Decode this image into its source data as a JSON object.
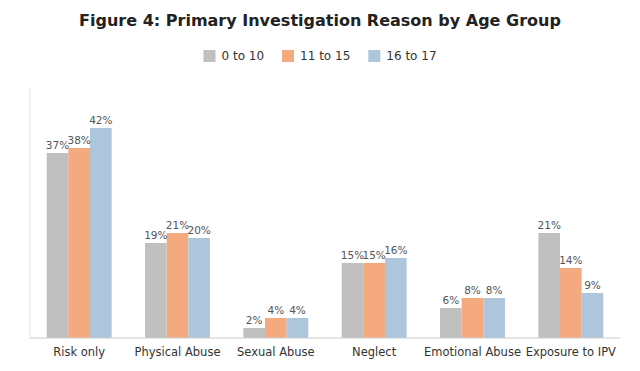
{
  "chart_data": {
    "type": "bar",
    "title": "Figure 4: Primary Investigation Reason by Age Group",
    "categories": [
      "Risk only",
      "Physical Abuse",
      "Sexual Abuse",
      "Neglect",
      "Emotional Abuse",
      "Exposure to IPV"
    ],
    "series": [
      {
        "name": "0 to 10",
        "color": "#c0c0c0",
        "values": [
          37,
          19,
          2,
          15,
          6,
          21
        ],
        "value_labels": [
          "37%",
          "19%",
          "2%",
          "15%",
          "6%",
          "21%"
        ]
      },
      {
        "name": "11 to 15",
        "color": "#f4a97f",
        "values": [
          38,
          21,
          4,
          15,
          8,
          14
        ],
        "value_labels": [
          "38%",
          "21%",
          "4%",
          "15%",
          "8%",
          "14%"
        ]
      },
      {
        "name": "16 to 17",
        "color": "#aec6dc",
        "values": [
          42,
          20,
          4,
          16,
          8,
          9
        ],
        "value_labels": [
          "42%",
          "20%",
          "4%",
          "16%",
          "8%",
          "9%"
        ]
      }
    ],
    "ylim": [
      0,
      50
    ],
    "yticks": [],
    "tick_labels": "x",
    "data_labels": true,
    "legend": "top",
    "grid": false
  }
}
